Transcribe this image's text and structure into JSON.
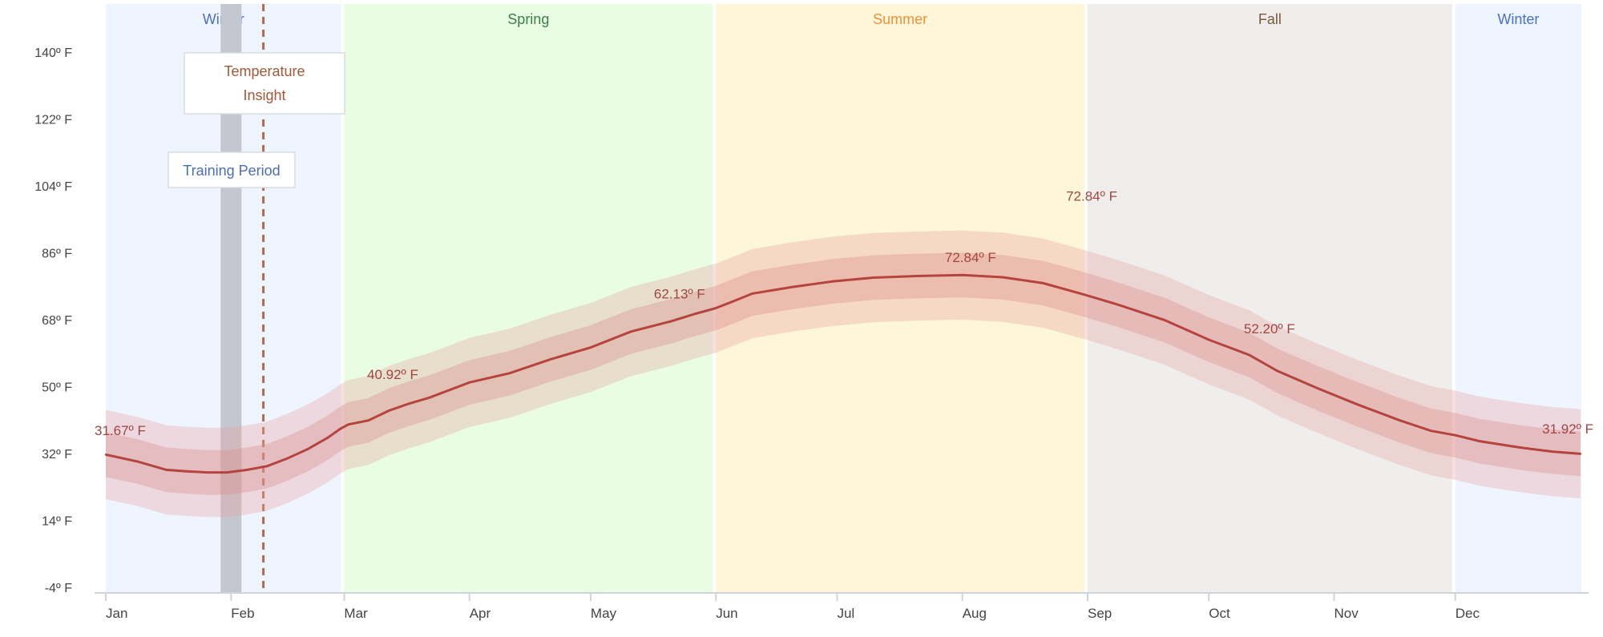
{
  "chart_data": {
    "type": "line",
    "title": "",
    "xlabel": "",
    "ylabel": "",
    "x_range": [
      0,
      365
    ],
    "ylim": [
      -4,
      158
    ],
    "y_ticks": [
      -4,
      14,
      32,
      50,
      68,
      86,
      104,
      122,
      140
    ],
    "y_tick_labels": [
      "-4º F",
      "14º F",
      "32º F",
      "50º F",
      "68º F",
      "86º F",
      "104º F",
      "122º F",
      "140º F"
    ],
    "x_ticks": [
      {
        "label": "Jan",
        "day": 0
      },
      {
        "label": "Feb",
        "day": 31
      },
      {
        "label": "Mar",
        "day": 59
      },
      {
        "label": "Apr",
        "day": 90
      },
      {
        "label": "May",
        "day": 120
      },
      {
        "label": "Jun",
        "day": 151
      },
      {
        "label": "Jul",
        "day": 181
      },
      {
        "label": "Aug",
        "day": 212
      },
      {
        "label": "Sep",
        "day": 243
      },
      {
        "label": "Oct",
        "day": 273
      },
      {
        "label": "Nov",
        "day": 304
      },
      {
        "label": "Dec",
        "day": 334
      }
    ],
    "seasons": [
      {
        "name": "Winter",
        "start": 0,
        "end": 58,
        "fill": "#eef5ff",
        "text_color": "#4a6fc9"
      },
      {
        "name": "Spring",
        "start": 59,
        "end": 150,
        "fill": "#e9fde4",
        "text_color": "#3e7f48"
      },
      {
        "name": "Summer",
        "start": 151,
        "end": 242,
        "fill": "#fdf6d8",
        "text_color": "#f0913a"
      },
      {
        "name": "Fall",
        "start": 243,
        "end": 333,
        "fill": "#efeeed",
        "text_color": "#7a5a3a"
      },
      {
        "name": "Winter",
        "start": 334,
        "end": 365,
        "fill": "#eef5ff",
        "text_color": "#4a6fc9"
      }
    ],
    "series": [
      {
        "color": "#b5443f",
        "x": [
          0,
          8,
          15,
          20,
          25,
          30,
          35,
          40,
          45,
          50,
          55,
          58,
          60,
          65,
          70,
          75,
          80,
          90,
          100,
          110,
          120,
          130,
          140,
          146,
          151,
          155,
          160,
          170,
          180,
          190,
          200,
          212,
          222,
          232,
          242,
          250,
          262,
          273,
          283,
          290,
          300,
          310,
          320,
          328,
          334,
          340,
          350,
          358,
          365
        ],
        "y": [
          31.7,
          29.8,
          27.6,
          27.2,
          26.9,
          26.9,
          27.6,
          28.6,
          30.7,
          33.2,
          36.3,
          38.6,
          39.8,
          40.9,
          43.5,
          45.4,
          47.0,
          51.1,
          53.6,
          57.3,
          60.5,
          64.8,
          67.6,
          69.6,
          71.1,
          72.8,
          75.0,
          76.8,
          78.3,
          79.3,
          79.7,
          80.0,
          79.4,
          77.8,
          74.8,
          72.2,
          67.9,
          62.6,
          58.5,
          54.2,
          49.5,
          45.1,
          41.0,
          38.1,
          36.9,
          35.3,
          33.6,
          32.5,
          31.9
        ]
      }
    ],
    "band_widths": {
      "inner": 6,
      "outer": 12
    },
    "annotations": [
      {
        "text": "31.67º F",
        "day": 4,
        "temp": 37.0
      },
      {
        "text": "40.92º F",
        "day": 71,
        "temp": 52.0
      },
      {
        "text": "62.13º F",
        "day": 142,
        "temp": 73.7
      },
      {
        "text": "72.84º F",
        "day": 214,
        "temp": 83.5
      },
      {
        "text": "72.84º F",
        "day": 244,
        "temp": 100.0
      },
      {
        "text": "52.20º F",
        "day": 288,
        "temp": 64.3
      },
      {
        "text": "31.92º F",
        "day": 361,
        "temp": 37.4
      }
    ],
    "markers": {
      "training_period": {
        "label": "Training Period",
        "day": 31
      },
      "temperature_insight": {
        "label": "Temperature Insight",
        "day": 39
      }
    }
  }
}
